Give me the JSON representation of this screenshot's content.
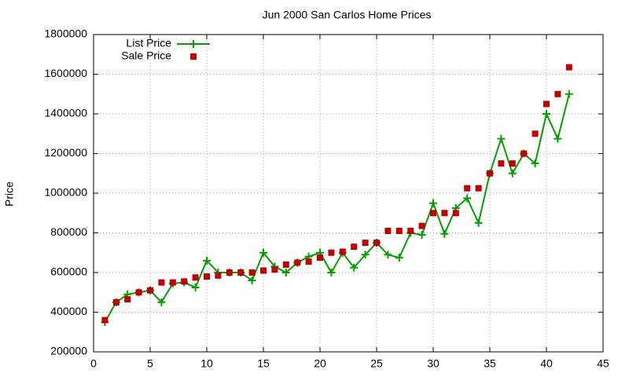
{
  "chart_data": {
    "type": "line",
    "title": "Jun 2000 San Carlos Home Prices",
    "ylabel": "Price",
    "x": [
      1,
      2,
      3,
      4,
      5,
      6,
      7,
      8,
      9,
      10,
      11,
      12,
      13,
      14,
      15,
      16,
      17,
      18,
      19,
      20,
      21,
      22,
      23,
      24,
      25,
      26,
      27,
      28,
      29,
      30,
      31,
      32,
      33,
      34,
      35,
      36,
      37,
      38,
      39,
      40,
      41,
      42
    ],
    "series": [
      {
        "name": "List Price",
        "color": "#00a000",
        "line": true,
        "marker": "plus",
        "values": [
          350000,
          450000,
          490000,
          500000,
          510000,
          450000,
          545000,
          550000,
          525000,
          660000,
          600000,
          600000,
          600000,
          560000,
          700000,
          630000,
          600000,
          650000,
          680000,
          700000,
          600000,
          700000,
          625000,
          690000,
          750000,
          690000,
          675000,
          800000,
          790000,
          950000,
          795000,
          925000,
          975000,
          850000,
          1100000,
          1275000,
          1100000,
          1200000,
          1150000,
          1400000,
          1275000,
          1500000
        ]
      },
      {
        "name": "Sale Price",
        "color": "#c00000",
        "line": false,
        "marker": "square",
        "values": [
          360000,
          450000,
          465000,
          500000,
          510000,
          550000,
          550000,
          555000,
          575000,
          580000,
          585000,
          600000,
          600000,
          600000,
          610000,
          615000,
          640000,
          650000,
          655000,
          675000,
          700000,
          705000,
          730000,
          750000,
          750000,
          810000,
          810000,
          810000,
          835000,
          900000,
          900000,
          900000,
          1025000,
          1025000,
          1100000,
          1150000,
          1150000,
          1200000,
          1300000,
          1450000,
          1500000,
          1635000
        ]
      }
    ],
    "xlim": [
      0,
      45
    ],
    "xticks": [
      0,
      5,
      10,
      15,
      20,
      25,
      30,
      35,
      40,
      45
    ],
    "ylim": [
      200000,
      1800000
    ],
    "yticks": [
      200000,
      400000,
      600000,
      800000,
      1000000,
      1200000,
      1400000,
      1600000,
      1800000
    ],
    "grid": true,
    "legend": "top-left"
  }
}
